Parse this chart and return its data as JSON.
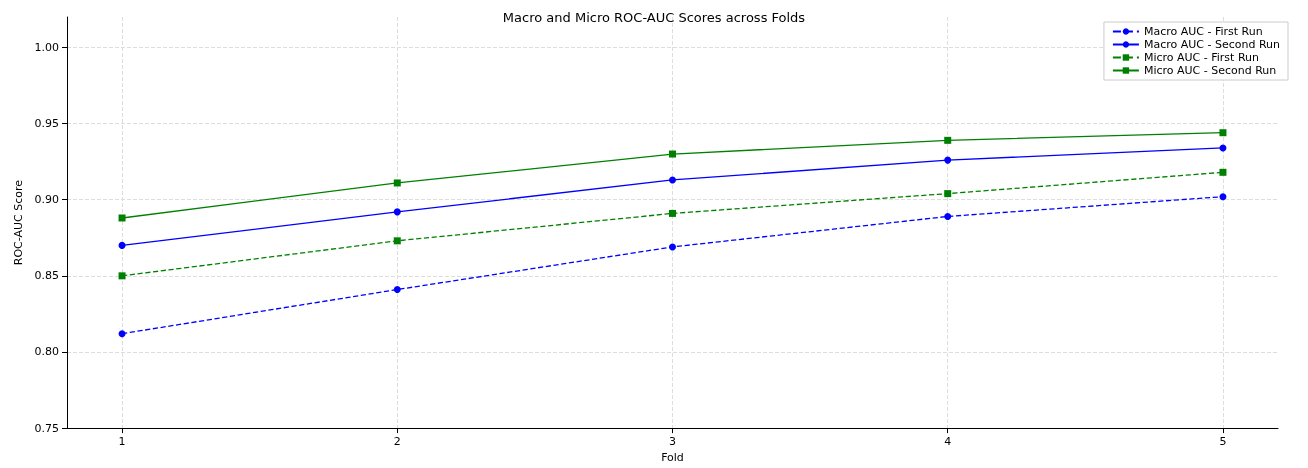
{
  "chart_data": {
    "type": "line",
    "title": "Macro and Micro ROC-AUC Scores across Folds",
    "xlabel": "Fold",
    "ylabel": "ROC-AUC Score",
    "x": [
      1,
      2,
      3,
      4,
      5
    ],
    "xlim": [
      0.8,
      5.2
    ],
    "xticks": [
      1,
      2,
      3,
      4,
      5
    ],
    "ylim": [
      0.75,
      1.02
    ],
    "yticks": [
      0.75,
      {
        "value": 0.8,
        "label": "0.80"
      },
      0.85,
      {
        "value": 0.9,
        "label": "0.90"
      },
      0.95,
      {
        "value": 1.0,
        "label": "1.00"
      }
    ],
    "grid": true,
    "legend": "top right",
    "series": [
      {
        "name": "Macro AUC - First Run",
        "color": "#0000ff",
        "marker": "circle",
        "line_style": "dashed",
        "values": [
          0.812,
          0.841,
          0.869,
          0.889,
          0.902
        ]
      },
      {
        "name": "Macro AUC - Second Run",
        "color": "#0000ff",
        "marker": "circle",
        "line_style": "solid",
        "values": [
          0.87,
          0.892,
          0.913,
          0.926,
          0.934
        ]
      },
      {
        "name": "Micro AUC - First Run",
        "color": "#008000",
        "marker": "square",
        "line_style": "dashed",
        "values": [
          0.85,
          0.873,
          0.891,
          0.904,
          0.918
        ]
      },
      {
        "name": "Micro AUC - Second Run",
        "color": "#008000",
        "marker": "square",
        "line_style": "solid",
        "values": [
          0.888,
          0.911,
          0.93,
          0.939,
          0.944
        ]
      }
    ]
  }
}
